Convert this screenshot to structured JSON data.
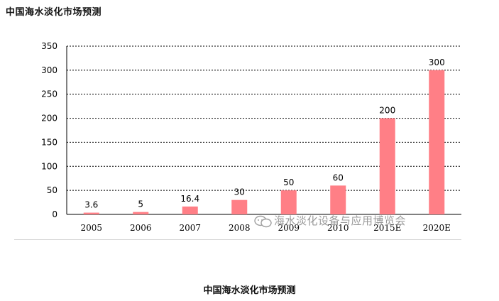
{
  "page": {
    "title": "中国海水淡化市场预测",
    "caption": "中国海水淡化市场预测",
    "watermark": "海水淡化设备与应用博览会"
  },
  "chart_data": {
    "type": "bar",
    "title": "",
    "xlabel": "",
    "ylabel": "",
    "categories": [
      "2005",
      "2006",
      "2007",
      "2008",
      "2009",
      "2010",
      "2015E",
      "2020E"
    ],
    "values": [
      3.6,
      5,
      16.4,
      30,
      50,
      60,
      200,
      300
    ],
    "data_labels": [
      "3.6",
      "5",
      "16.4",
      "30",
      "50",
      "60",
      "200",
      "300"
    ],
    "ylim": [
      0,
      350
    ],
    "yticks": [
      0,
      50,
      100,
      150,
      200,
      250,
      300,
      350
    ],
    "grid": true,
    "legend": "none",
    "bar_color": "#ff7f86"
  }
}
